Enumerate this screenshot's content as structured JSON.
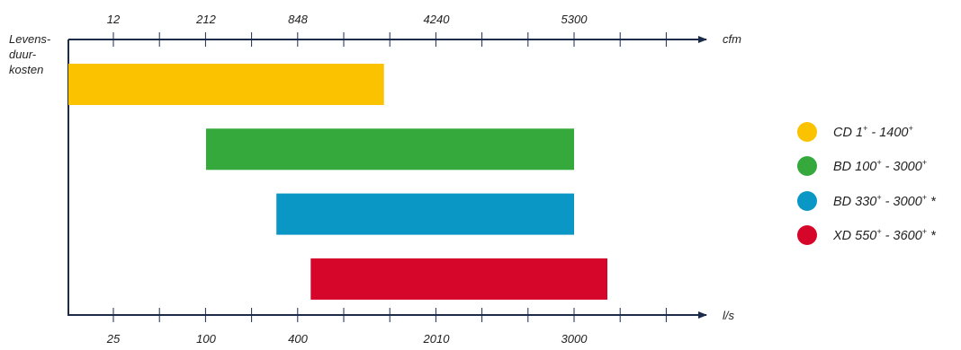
{
  "chart_data": {
    "type": "bar",
    "orientation": "horizontal-range",
    "ylabel_lines": [
      "Levens-",
      "duur-",
      "kosten"
    ],
    "top_axis": {
      "unit": "cfm",
      "tick_labels": [
        "12",
        "212",
        "848",
        "4240",
        "5300"
      ]
    },
    "bottom_axis": {
      "unit": "l/s",
      "tick_labels": [
        "25",
        "100",
        "400",
        "2010",
        "3000"
      ]
    },
    "series": [
      {
        "name": "CD 1+ - 1400+",
        "color": "#fbc200",
        "start": 25,
        "end": 1400
      },
      {
        "name": "BD 100+ - 3000+",
        "color": "#36a93c",
        "start": 100,
        "end": 3000
      },
      {
        "name": "BD 330+ - 3000+ *",
        "color": "#0b97c6",
        "start": 330,
        "end": 3000
      },
      {
        "name": "XD 550+ - 3600+ *",
        "color": "#d6062a",
        "start": 550,
        "end": 3600
      }
    ],
    "legend_position": "right",
    "grid": false
  },
  "legend": [
    {
      "label": "CD 1",
      "lo_sup": "+",
      "mid": " - 1400",
      "hi_sup": "+",
      "suffix": ""
    },
    {
      "label": "BD 100",
      "lo_sup": "+",
      "mid": " - 3000",
      "hi_sup": "+",
      "suffix": ""
    },
    {
      "label": "BD 330",
      "lo_sup": "+",
      "mid": " - 3000",
      "hi_sup": "+",
      "suffix": " *"
    },
    {
      "label": "XD 550",
      "lo_sup": "+",
      "mid": " - 3600",
      "hi_sup": "+",
      "suffix": " *"
    }
  ]
}
